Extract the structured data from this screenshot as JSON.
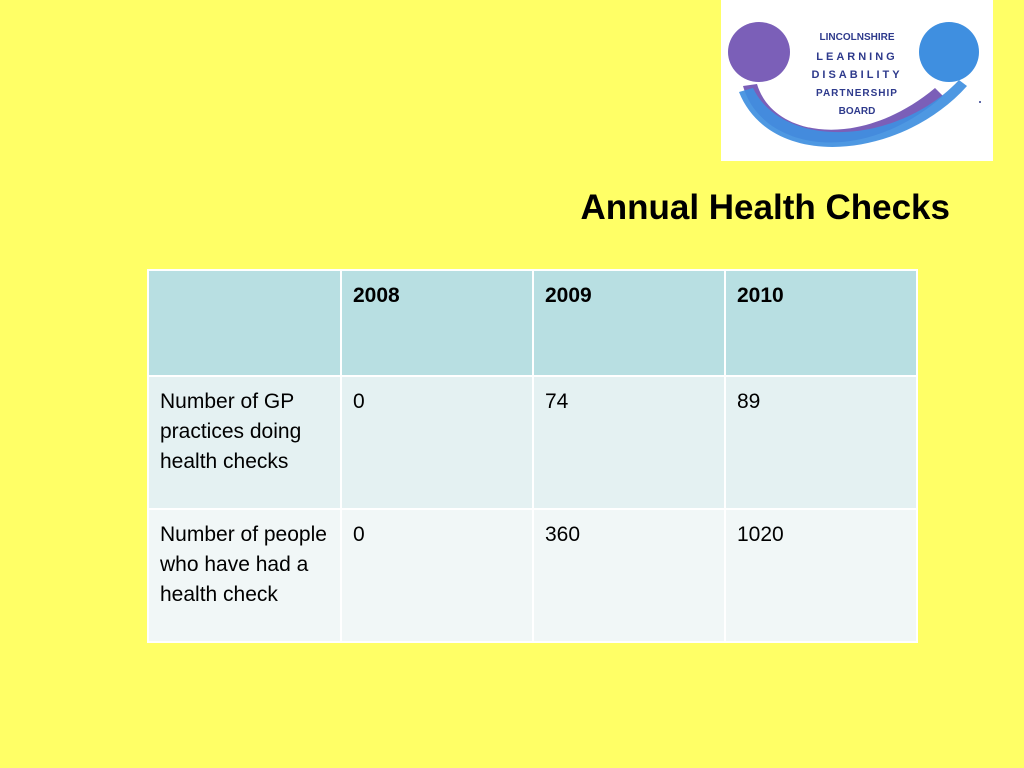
{
  "logo": {
    "icon": "partnership-board-logo",
    "lines": [
      "LINCOLNSHIRE",
      "LEARNING",
      "DISABILITY",
      "PARTNERSHIP",
      "BOARD"
    ],
    "colors": {
      "purple": "#7b5fb8",
      "blue": "#3f8fe0",
      "text": "#2e3a8c"
    }
  },
  "title": "Annual Health Checks",
  "table": {
    "headers": [
      "",
      "2008",
      "2009",
      "2010"
    ],
    "rows": [
      {
        "label": "Number of GP practices doing health checks",
        "values": [
          "0",
          "74",
          "89"
        ]
      },
      {
        "label": "Number of people who have had a health check",
        "values": [
          "0",
          "360",
          "1020"
        ]
      }
    ]
  },
  "colors": {
    "background": "#ffff66",
    "header_fill": "#b8dfe2",
    "row1_fill": "#e4f1f2",
    "row2_fill": "#f1f7f7"
  }
}
